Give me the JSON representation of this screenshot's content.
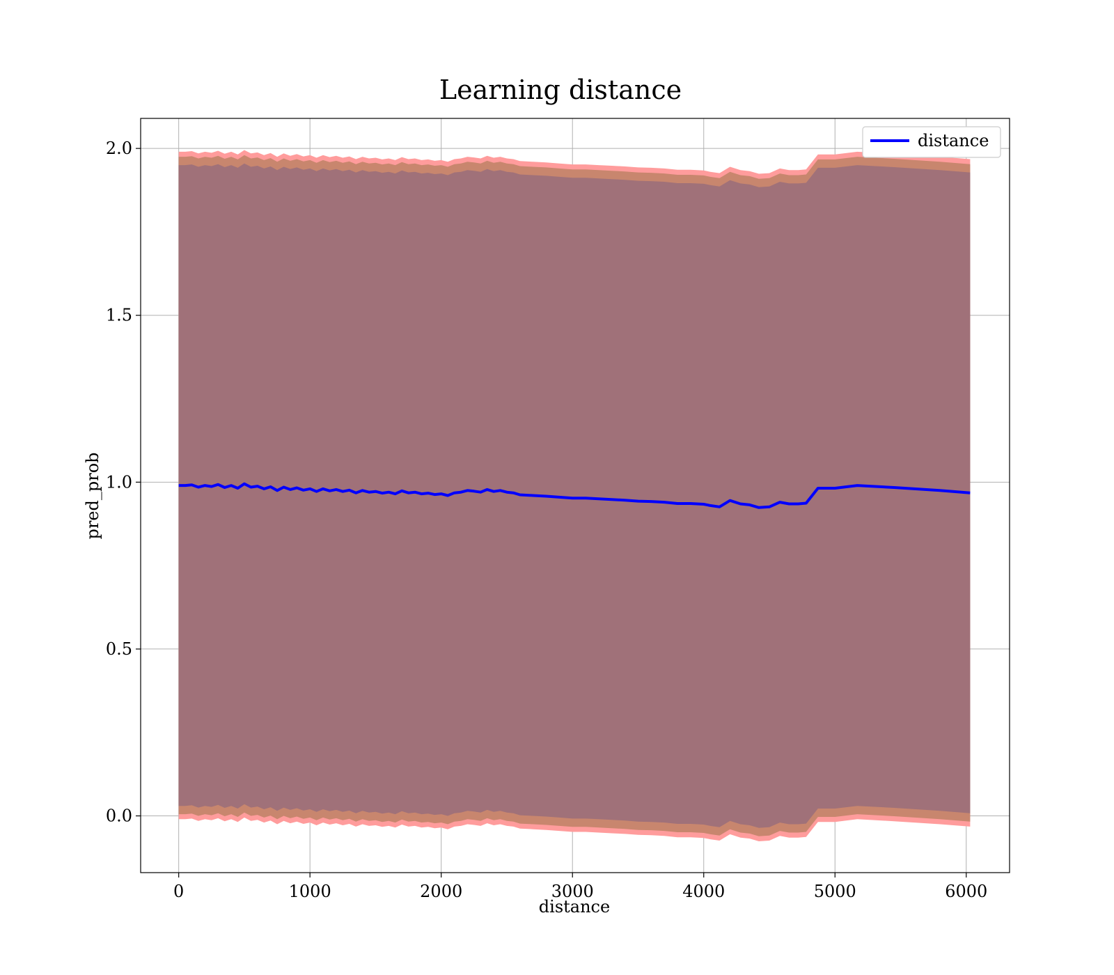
{
  "chart_data": {
    "type": "line",
    "title": "Learning distance",
    "xlabel": "distance",
    "ylabel": "pred_prob",
    "xlim": [
      -290,
      6330
    ],
    "ylim": [
      -0.17,
      2.09
    ],
    "x_ticks": [
      0,
      1000,
      2000,
      3000,
      4000,
      5000,
      6000
    ],
    "y_ticks": [
      0.0,
      0.5,
      1.0,
      1.5,
      2.0
    ],
    "x_tick_labels": [
      "0",
      "1000",
      "2000",
      "3000",
      "4000",
      "5000",
      "6000"
    ],
    "y_tick_labels": [
      "0.0",
      "0.5",
      "1.0",
      "1.5",
      "2.0"
    ],
    "grid": true,
    "legend": {
      "position": "top-right",
      "entries": [
        "distance"
      ]
    },
    "series": [
      {
        "name": "distance",
        "color": "#0000ff",
        "x": [
          0,
          50,
          100,
          150,
          200,
          250,
          300,
          350,
          400,
          450,
          500,
          550,
          600,
          650,
          700,
          750,
          800,
          850,
          900,
          950,
          1000,
          1050,
          1100,
          1150,
          1200,
          1250,
          1300,
          1350,
          1400,
          1450,
          1500,
          1550,
          1600,
          1650,
          1700,
          1750,
          1800,
          1850,
          1900,
          1950,
          2000,
          2050,
          2100,
          2150,
          2200,
          2250,
          2300,
          2350,
          2400,
          2450,
          2500,
          2550,
          2600,
          2700,
          2800,
          2900,
          3000,
          3100,
          3200,
          3300,
          3400,
          3500,
          3600,
          3700,
          3800,
          3900,
          4000,
          4050,
          4120,
          4200,
          4280,
          4350,
          4420,
          4500,
          4580,
          4650,
          4720,
          4780,
          4870,
          5000,
          5170,
          5450,
          5800,
          6030
        ],
        "y": [
          0.99,
          0.99,
          0.992,
          0.985,
          0.99,
          0.987,
          0.993,
          0.984,
          0.99,
          0.982,
          0.995,
          0.985,
          0.988,
          0.98,
          0.986,
          0.975,
          0.985,
          0.978,
          0.983,
          0.976,
          0.98,
          0.972,
          0.98,
          0.974,
          0.978,
          0.972,
          0.976,
          0.968,
          0.975,
          0.97,
          0.972,
          0.967,
          0.97,
          0.965,
          0.974,
          0.968,
          0.97,
          0.965,
          0.967,
          0.963,
          0.965,
          0.96,
          0.968,
          0.97,
          0.975,
          0.973,
          0.97,
          0.978,
          0.972,
          0.975,
          0.97,
          0.968,
          0.962,
          0.96,
          0.958,
          0.955,
          0.952,
          0.952,
          0.95,
          0.948,
          0.946,
          0.943,
          0.942,
          0.94,
          0.936,
          0.936,
          0.934,
          0.93,
          0.926,
          0.945,
          0.935,
          0.932,
          0.924,
          0.926,
          0.94,
          0.935,
          0.935,
          0.937,
          0.982,
          0.982,
          0.99,
          0.984,
          0.975,
          0.968
        ],
        "band_half_width": 0.98
      }
    ]
  }
}
